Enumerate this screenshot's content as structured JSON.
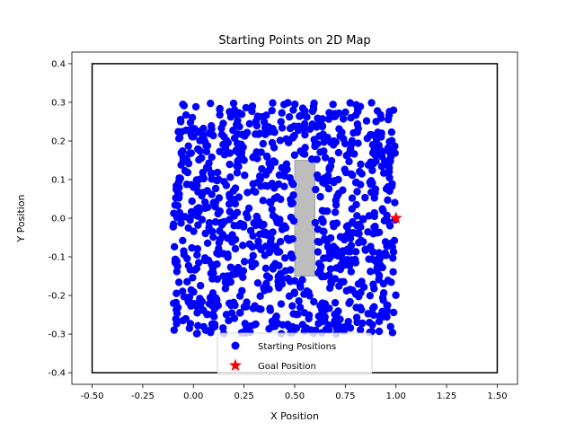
{
  "chart_data": {
    "type": "scatter",
    "title": "Starting Points on 2D Map",
    "xlabel": "X Position",
    "ylabel": "Y Position",
    "xlim": [
      -0.6,
      1.6
    ],
    "ylim": [
      -0.43,
      0.43
    ],
    "xticks": [
      "-0.50",
      "-0.25",
      "0.00",
      "0.25",
      "0.50",
      "0.75",
      "1.00",
      "1.25",
      "1.50"
    ],
    "yticks": [
      "-0.4",
      "-0.3",
      "-0.2",
      "-0.1",
      "0.0",
      "0.1",
      "0.2",
      "0.3",
      "0.4"
    ],
    "grid": false,
    "legend_position": "bottom-center",
    "boundary": {
      "x": [
        -0.5,
        1.5
      ],
      "y": [
        -0.4,
        0.4
      ],
      "color": "#000000"
    },
    "obstacle": {
      "x": [
        0.5,
        0.6
      ],
      "y": [
        -0.15,
        0.15
      ],
      "color": "#bdbdbd"
    },
    "series": [
      {
        "name": "Starting Positions",
        "marker": "circle",
        "color": "#0000ff",
        "sampling": {
          "x_range": [
            -0.1,
            1.0
          ],
          "y_range": [
            -0.3,
            0.3
          ],
          "count": 1000,
          "excluded_region": {
            "x": [
              0.5,
              0.6
            ],
            "y": [
              -0.15,
              0.15
            ]
          }
        }
      },
      {
        "name": "Goal Position",
        "marker": "star",
        "color": "#ff0000",
        "points": [
          {
            "x": 1.0,
            "y": 0.0
          }
        ]
      }
    ]
  }
}
